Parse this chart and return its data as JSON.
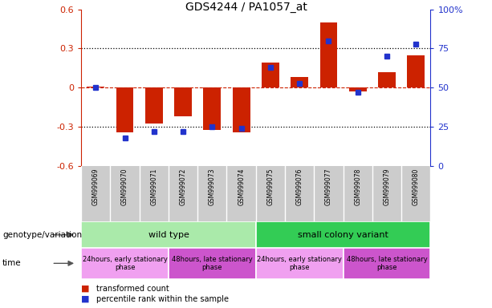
{
  "title": "GDS4244 / PA1057_at",
  "samples": [
    "GSM999069",
    "GSM999070",
    "GSM999071",
    "GSM999072",
    "GSM999073",
    "GSM999074",
    "GSM999075",
    "GSM999076",
    "GSM999077",
    "GSM999078",
    "GSM999079",
    "GSM999080"
  ],
  "red_bars": [
    0.01,
    -0.34,
    -0.27,
    -0.22,
    -0.32,
    -0.34,
    0.19,
    0.08,
    0.5,
    -0.03,
    0.12,
    0.25
  ],
  "blue_dots_pct": [
    50,
    18,
    22,
    22,
    25,
    24,
    63,
    53,
    80,
    47,
    70,
    78
  ],
  "ylim_left": [
    -0.6,
    0.6
  ],
  "ylim_right": [
    0,
    100
  ],
  "yticks_left": [
    -0.6,
    -0.3,
    0.0,
    0.3,
    0.6
  ],
  "yticks_right": [
    0,
    25,
    50,
    75,
    100
  ],
  "ytick_labels_left": [
    "-0.6",
    "-0.3",
    "0",
    "0.3",
    "0.6"
  ],
  "ytick_labels_right": [
    "0",
    "25",
    "50",
    "75",
    "100%"
  ],
  "bar_color": "#cc2200",
  "dot_color": "#2233cc",
  "background_color": "#ffffff",
  "genotype_label": "genotype/variation",
  "time_label": "time",
  "genotype_groups": [
    {
      "label": "wild type",
      "start": 0,
      "end": 6,
      "color": "#aaeaaa"
    },
    {
      "label": "small colony variant",
      "start": 6,
      "end": 12,
      "color": "#33cc55"
    }
  ],
  "time_groups": [
    {
      "label": "24hours, early stationary\nphase",
      "start": 0,
      "end": 3,
      "color": "#f0a0f0"
    },
    {
      "label": "48hours, late stationary\nphase",
      "start": 3,
      "end": 6,
      "color": "#cc55cc"
    },
    {
      "label": "24hours, early stationary\nphase",
      "start": 6,
      "end": 9,
      "color": "#f0a0f0"
    },
    {
      "label": "48hours, late stationary\nphase",
      "start": 9,
      "end": 12,
      "color": "#cc55cc"
    }
  ],
  "sample_bg": "#cccccc",
  "legend_red": "transformed count",
  "legend_blue": "percentile rank within the sample",
  "bar_width": 0.6
}
